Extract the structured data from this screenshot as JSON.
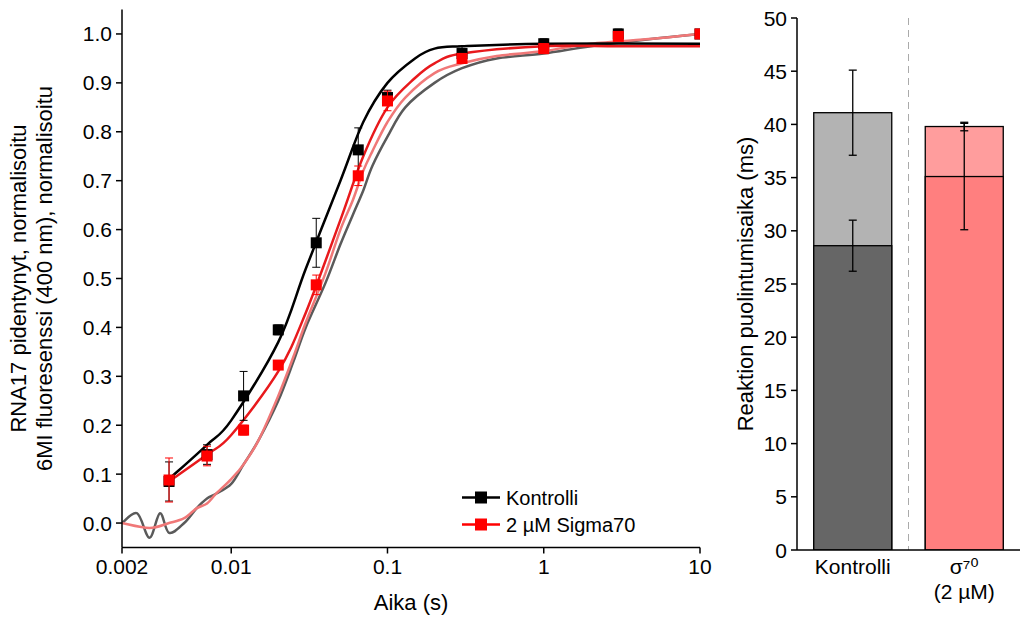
{
  "chart_data": [
    {
      "type": "line",
      "x_label": "Aika (s)",
      "y_label": [
        "RNA17 pidentynyt, normalisoitu",
        "6MI fluoresenssi (400 nm), normalisoitu"
      ],
      "log": "x",
      "xlim": [
        0.002,
        10
      ],
      "xticks": [
        0.002,
        0.01,
        0.1,
        1,
        10
      ],
      "ylim": [
        -0.05,
        1.05
      ],
      "yticks": [
        {
          "value": 0,
          "label": "0.0"
        },
        0.1,
        0.2,
        0.3,
        0.4,
        0.5,
        0.6,
        0.7,
        0.8,
        0.9,
        {
          "value": 1,
          "label": "1.0"
        }
      ],
      "grid": false,
      "legend": "lower right",
      "series": [
        {
          "type": "line",
          "line_style": "solid",
          "color": "#5a5a5a",
          "x": [
            0.002,
            0.0025,
            0.003,
            0.0035,
            0.004,
            0.005,
            0.006,
            0.007,
            0.008,
            0.01,
            0.012,
            0.015,
            0.02,
            0.025,
            0.03,
            0.04,
            0.05,
            0.06,
            0.07,
            0.08,
            0.1,
            0.13,
            0.2,
            0.3,
            0.5,
            1,
            2,
            5,
            10
          ],
          "values": [
            0.0,
            0.02,
            -0.03,
            0.02,
            -0.02,
            0.0,
            0.03,
            0.05,
            0.06,
            0.08,
            0.12,
            0.17,
            0.25,
            0.33,
            0.4,
            0.49,
            0.57,
            0.63,
            0.68,
            0.73,
            0.79,
            0.85,
            0.9,
            0.93,
            0.95,
            0.96,
            0.975,
            0.99,
            1.0
          ]
        },
        {
          "type": "line",
          "line_style": "solid",
          "color": "#f07878",
          "x": [
            0.002,
            0.003,
            0.004,
            0.005,
            0.006,
            0.007,
            0.008,
            0.01,
            0.012,
            0.015,
            0.02,
            0.025,
            0.03,
            0.04,
            0.05,
            0.06,
            0.07,
            0.08,
            0.1,
            0.13,
            0.2,
            0.3,
            0.5,
            1,
            2,
            5,
            10
          ],
          "values": [
            0.0,
            -0.01,
            0.0,
            0.01,
            0.03,
            0.04,
            0.06,
            0.09,
            0.12,
            0.17,
            0.26,
            0.34,
            0.41,
            0.51,
            0.6,
            0.66,
            0.72,
            0.76,
            0.82,
            0.87,
            0.92,
            0.94,
            0.955,
            0.965,
            0.98,
            0.99,
            1.0
          ]
        },
        {
          "type": "line",
          "line_style": "solid",
          "color": "#000000",
          "x": [
            0.004,
            0.007,
            0.01,
            0.02,
            0.03,
            0.05,
            0.07,
            0.1,
            0.15,
            0.2,
            0.3,
            1,
            10
          ],
          "values": [
            0.09,
            0.16,
            0.21,
            0.37,
            0.52,
            0.7,
            0.82,
            0.9,
            0.95,
            0.97,
            0.975,
            0.98,
            0.98
          ]
        },
        {
          "type": "line",
          "line_style": "solid",
          "color": "#e8191c",
          "x": [
            0.004,
            0.007,
            0.01,
            0.02,
            0.03,
            0.05,
            0.07,
            0.1,
            0.15,
            0.2,
            0.3,
            1,
            3,
            10
          ],
          "values": [
            0.085,
            0.14,
            0.18,
            0.31,
            0.43,
            0.62,
            0.75,
            0.85,
            0.91,
            0.94,
            0.96,
            0.975,
            0.975,
            0.975
          ]
        },
        {
          "name": "Kontrolli",
          "type": "scatter",
          "marker": "square",
          "color": "#000000",
          "x": [
            0.004,
            0.007,
            0.012,
            0.02,
            0.035,
            0.065,
            0.1,
            0.3,
            1,
            3,
            10
          ],
          "values": [
            0.085,
            0.14,
            0.26,
            0.395,
            0.573,
            0.763,
            0.87,
            0.96,
            0.98,
            1.0,
            1.0
          ],
          "errors": [
            0.04,
            0.02,
            0.05,
            0.01,
            0.05,
            0.045,
            0.015,
            0.015,
            0.01,
            0.01,
            0.005
          ]
        },
        {
          "name": "2 µM Sigma70",
          "type": "scatter",
          "marker": "square",
          "color": "#ff0000",
          "x": [
            0.004,
            0.007,
            0.012,
            0.02,
            0.035,
            0.065,
            0.1,
            0.3,
            1,
            3,
            10
          ],
          "values": [
            0.088,
            0.137,
            0.19,
            0.323,
            0.487,
            0.71,
            0.863,
            0.95,
            0.97,
            0.995,
            1.0
          ],
          "errors": [
            0.045,
            0.02,
            0.01,
            0.005,
            0.02,
            0.02,
            0.02,
            0.01,
            0.01,
            0.005,
            0.005
          ]
        }
      ]
    },
    {
      "type": "bar",
      "y_label": "Reaktion puolintumisaika (ms)",
      "categories": [
        "Kontrolli",
        "σ⁷⁰\n(2 µM)"
      ],
      "ylim": [
        0,
        50
      ],
      "yticks": [
        0,
        5,
        10,
        15,
        20,
        25,
        30,
        35,
        40,
        45,
        50
      ],
      "grid": false,
      "stacked": false,
      "data_labels": false,
      "series": [
        {
          "colors": [
            "#b3b3b3",
            "#ff9d9d"
          ],
          "values": [
            41.1,
            39.8
          ],
          "errors": [
            4.0,
            0.4
          ]
        },
        {
          "colors": [
            "#666666",
            "#ff7f7f"
          ],
          "values": [
            28.6,
            35.1
          ],
          "errors": [
            2.4,
            5.0
          ]
        }
      ]
    }
  ]
}
